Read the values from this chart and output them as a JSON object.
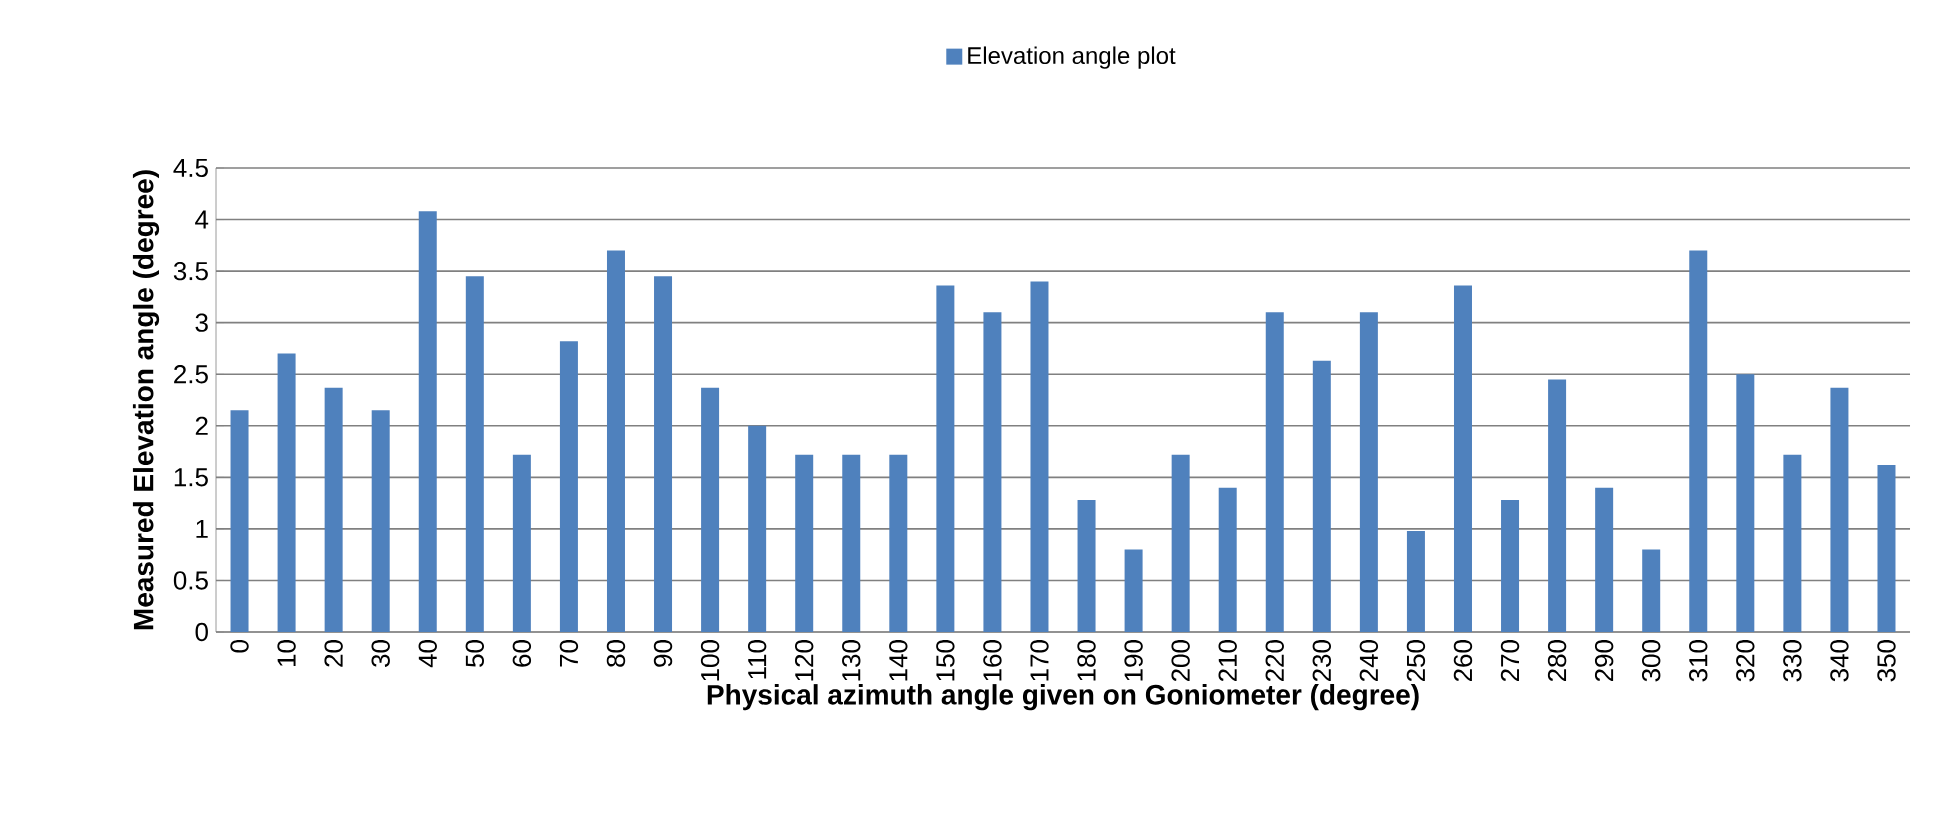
{
  "chart_data": {
    "type": "bar",
    "categories": [
      "0",
      "10",
      "20",
      "30",
      "40",
      "50",
      "60",
      "70",
      "80",
      "90",
      "100",
      "110",
      "120",
      "130",
      "140",
      "150",
      "160",
      "170",
      "180",
      "190",
      "200",
      "210",
      "220",
      "230",
      "240",
      "250",
      "260",
      "270",
      "280",
      "290",
      "300",
      "310",
      "320",
      "330",
      "340",
      "350"
    ],
    "series": [
      {
        "name": "Elevation angle plot",
        "color": "#4f81bd",
        "values": [
          2.15,
          2.7,
          2.37,
          2.15,
          4.08,
          3.45,
          1.72,
          2.82,
          3.7,
          3.45,
          2.37,
          2.0,
          1.72,
          1.72,
          1.72,
          3.36,
          3.1,
          3.4,
          1.28,
          0.8,
          1.72,
          1.4,
          3.1,
          2.63,
          3.1,
          0.98,
          3.36,
          1.28,
          2.45,
          1.4,
          0.8,
          3.7,
          2.5,
          1.72,
          2.37,
          1.62
        ]
      }
    ],
    "xlabel": "Physical azimuth angle given on Goniometer (degree)",
    "ylabel": "Measured Elevation angle (degree)",
    "ylim": [
      0,
      4.5
    ],
    "yticks": [
      0,
      0.5,
      1,
      1.5,
      2,
      2.5,
      3,
      3.5,
      4,
      4.5
    ],
    "grid": "y",
    "legend": "top"
  }
}
